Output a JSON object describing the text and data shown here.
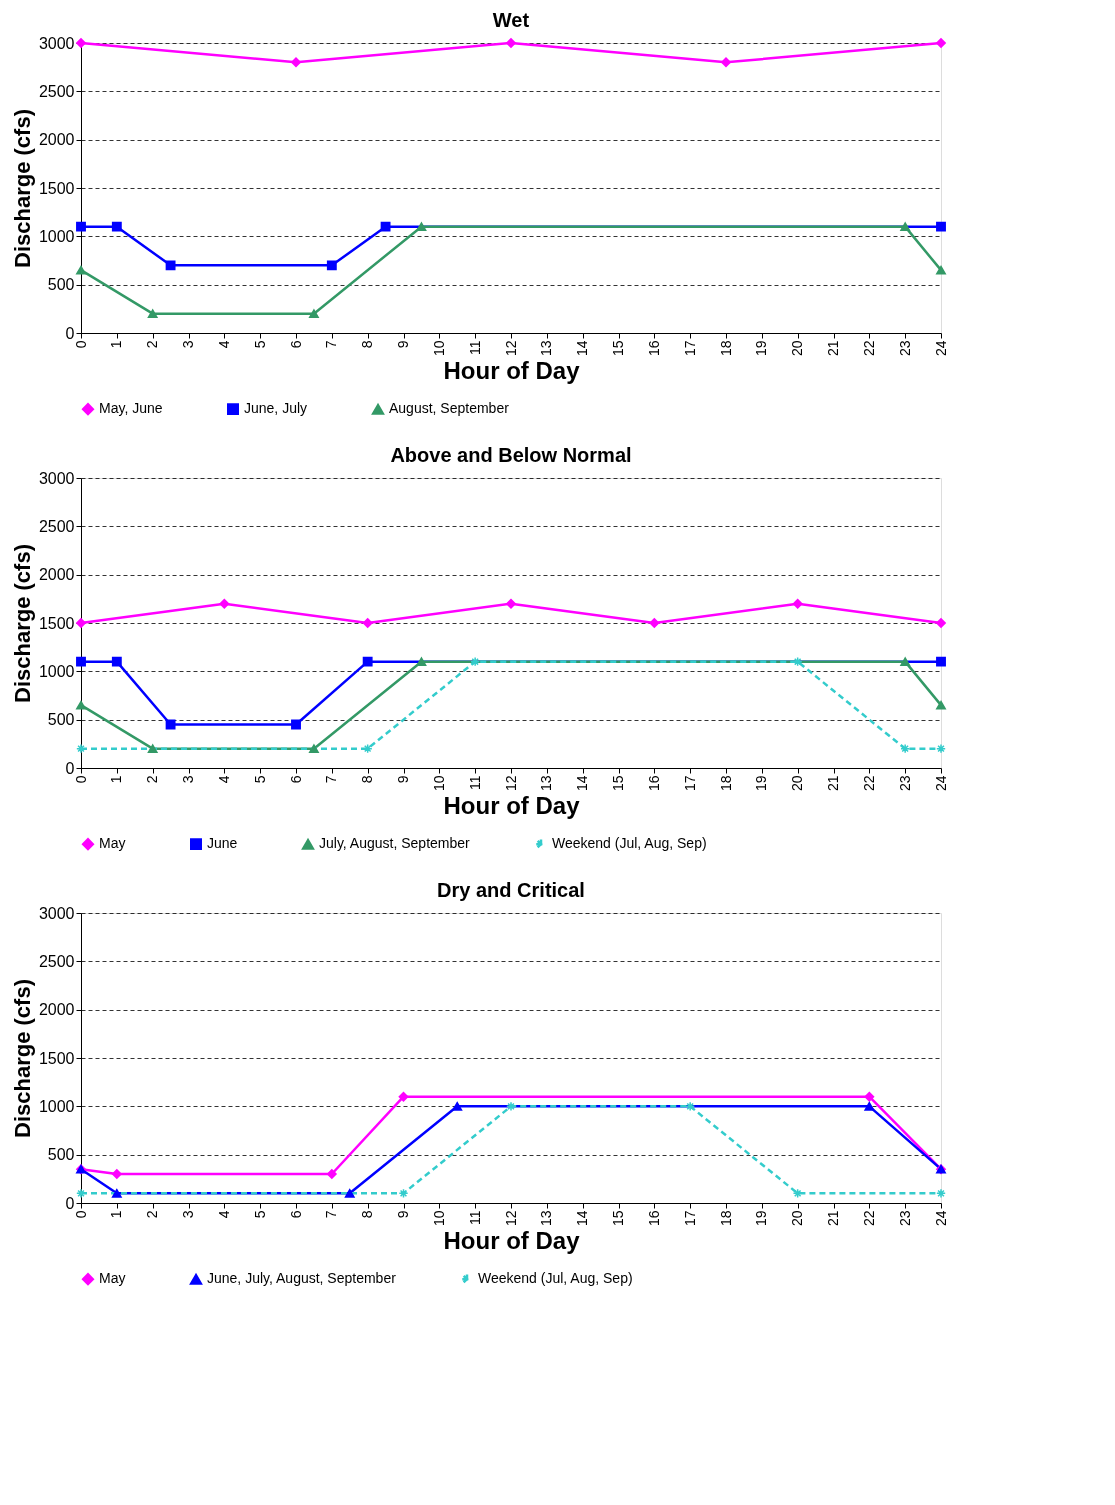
{
  "chart_data": [
    {
      "type": "line",
      "title": "Wet",
      "xlabel": "Hour of Day",
      "ylabel": "Discharge (cfs)",
      "xlim": [
        0,
        24
      ],
      "xticks": [
        0,
        1,
        2,
        3,
        4,
        5,
        6,
        7,
        8,
        9,
        10,
        11,
        12,
        13,
        14,
        15,
        16,
        17,
        18,
        19,
        20,
        21,
        22,
        23,
        24
      ],
      "ylim": [
        0,
        3000
      ],
      "yticks": [
        0,
        500,
        1000,
        1500,
        2000,
        2500,
        3000
      ],
      "grid": "y",
      "legend": "bottom",
      "series": [
        {
          "name": "May, June",
          "color": "#ff00ff",
          "marker": "diamond",
          "line_style": "solid",
          "x": [
            0,
            6,
            12,
            18,
            24
          ],
          "values": [
            3000,
            2800,
            3000,
            2800,
            3000
          ]
        },
        {
          "name": "June, July",
          "color": "#0000ff",
          "marker": "square",
          "line_style": "solid",
          "x": [
            0,
            1,
            2.5,
            7,
            8.5,
            24
          ],
          "values": [
            1100,
            1100,
            700,
            700,
            1100,
            1100
          ]
        },
        {
          "name": "August, September",
          "color": "#339966",
          "marker": "triangle",
          "line_style": "solid",
          "x": [
            0,
            2,
            6.5,
            9.5,
            23,
            24
          ],
          "values": [
            650,
            200,
            200,
            1100,
            1100,
            650
          ]
        }
      ]
    },
    {
      "type": "line",
      "title": "Above and Below Normal",
      "xlabel": "Hour of Day",
      "ylabel": "Discharge (cfs)",
      "xlim": [
        0,
        24
      ],
      "xticks": [
        0,
        1,
        2,
        3,
        4,
        5,
        6,
        7,
        8,
        9,
        10,
        11,
        12,
        13,
        14,
        15,
        16,
        17,
        18,
        19,
        20,
        21,
        22,
        23,
        24
      ],
      "ylim": [
        0,
        3000
      ],
      "yticks": [
        0,
        500,
        1000,
        1500,
        2000,
        2500,
        3000
      ],
      "grid": "y",
      "legend": "bottom",
      "series": [
        {
          "name": "May",
          "color": "#ff00ff",
          "marker": "diamond",
          "line_style": "solid",
          "x": [
            0,
            4,
            8,
            12,
            16,
            20,
            24
          ],
          "values": [
            1500,
            1700,
            1500,
            1700,
            1500,
            1700,
            1500
          ]
        },
        {
          "name": "June",
          "color": "#0000ff",
          "marker": "square",
          "line_style": "solid",
          "x": [
            0,
            1,
            2.5,
            6,
            8,
            24
          ],
          "values": [
            1100,
            1100,
            450,
            450,
            1100,
            1100
          ]
        },
        {
          "name": "July, August, September",
          "color": "#339966",
          "marker": "triangle",
          "line_style": "solid",
          "x": [
            0,
            2,
            6.5,
            9.5,
            23,
            24
          ],
          "values": [
            650,
            200,
            200,
            1100,
            1100,
            650
          ]
        },
        {
          "name": "Weekend (Jul, Aug, Sep)",
          "color": "#33cccc",
          "marker": "cross",
          "line_style": "dashed",
          "x": [
            0,
            8,
            11,
            20,
            23,
            24
          ],
          "values": [
            200,
            200,
            1100,
            1100,
            200,
            200
          ]
        }
      ]
    },
    {
      "type": "line",
      "title": "Dry and Critical",
      "xlabel": "Hour of Day",
      "ylabel": "Discharge (cfs)",
      "xlim": [
        0,
        24
      ],
      "xticks": [
        0,
        1,
        2,
        3,
        4,
        5,
        6,
        7,
        8,
        9,
        10,
        11,
        12,
        13,
        14,
        15,
        16,
        17,
        18,
        19,
        20,
        21,
        22,
        23,
        24
      ],
      "ylim": [
        0,
        3000
      ],
      "yticks": [
        0,
        500,
        1000,
        1500,
        2000,
        2500,
        3000
      ],
      "grid": "y",
      "legend": "bottom",
      "series": [
        {
          "name": "May",
          "color": "#ff00ff",
          "marker": "diamond",
          "line_style": "solid",
          "x": [
            0,
            1,
            7,
            9,
            22,
            24
          ],
          "values": [
            350,
            300,
            300,
            1100,
            1100,
            350
          ]
        },
        {
          "name": "June, July, August, September",
          "color": "#0000ff",
          "marker": "triangle",
          "line_style": "solid",
          "x": [
            0,
            1,
            7.5,
            10.5,
            22,
            24
          ],
          "values": [
            350,
            100,
            100,
            1000,
            1000,
            350
          ]
        },
        {
          "name": "Weekend (Jul, Aug, Sep)",
          "color": "#33cccc",
          "marker": "cross",
          "line_style": "dashed",
          "x": [
            0,
            9,
            12,
            17,
            20,
            24
          ],
          "values": [
            100,
            100,
            1000,
            1000,
            100,
            100
          ]
        }
      ]
    }
  ]
}
